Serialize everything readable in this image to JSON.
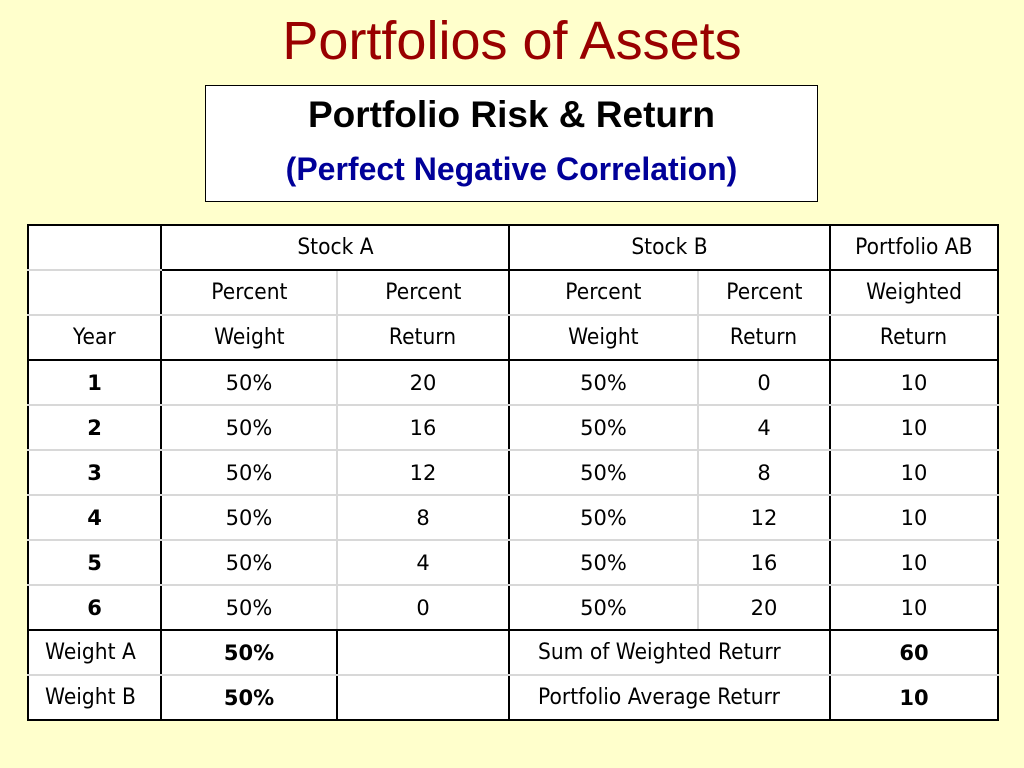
{
  "title": "Portfolios of Assets",
  "subtitle": {
    "main": "Portfolio Risk & Return",
    "sub": "(Perfect Negative Correlation)"
  },
  "table": {
    "group_headers": [
      "Stock A",
      "Stock B",
      "Portfolio AB"
    ],
    "col_headers_row1": [
      "Percent",
      "Percent",
      "Percent",
      "Percent",
      "Weighted"
    ],
    "col_headers_row2": [
      "Year",
      "Weight",
      "Return",
      "Weight",
      "Return",
      "Return"
    ],
    "rows": [
      [
        "1",
        "50%",
        "20",
        "50%",
        "0",
        "10"
      ],
      [
        "2",
        "50%",
        "16",
        "50%",
        "4",
        "10"
      ],
      [
        "3",
        "50%",
        "12",
        "50%",
        "8",
        "10"
      ],
      [
        "4",
        "50%",
        "8",
        "50%",
        "12",
        "10"
      ],
      [
        "5",
        "50%",
        "4",
        "50%",
        "16",
        "10"
      ],
      [
        "6",
        "50%",
        "0",
        "50%",
        "20",
        "10"
      ]
    ],
    "summary": [
      {
        "label": "Weight A",
        "weight": "50%",
        "desc": "Sum of Weighted Returr",
        "value": "60"
      },
      {
        "label": "Weight B",
        "weight": "50%",
        "desc": "Portfolio Average Returr",
        "value": "10"
      }
    ]
  }
}
